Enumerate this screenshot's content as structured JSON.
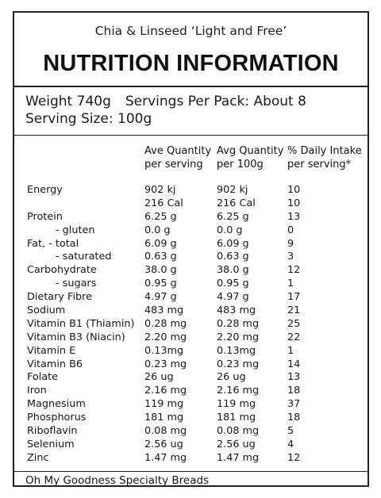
{
  "product_name": "Chia & Linseed ‘Light and Free’",
  "title": "NUTRITION INFORMATION",
  "weight": "Weight 740g",
  "servings_per_pack": "Servings Per Pack: About 8",
  "serving_size": "Serving Size: 100g",
  "columns": [
    {
      "line1": "Ave Quantity",
      "line2": "per serving"
    },
    {
      "line1": "Avg Quantity",
      "line2": "per 100g"
    },
    {
      "line1": "% Daily Intake",
      "line2": "per serving*"
    }
  ],
  "rows": [
    {
      "nutrient": "Energy",
      "per_serving": "902 kj",
      "per_100g": "902 kj",
      "daily": "10",
      "indent": false
    },
    {
      "nutrient": "",
      "per_serving": "216 Cal",
      "per_100g": "216 Cal",
      "daily": "10",
      "indent": false
    },
    {
      "nutrient": "Protein",
      "per_serving": "6.25 g",
      "per_100g": "6.25 g",
      "daily": "13",
      "indent": false
    },
    {
      "nutrient": "- gluten",
      "per_serving": "0.0 g",
      "per_100g": "0.0 g",
      "daily": "0",
      "indent": true
    },
    {
      "nutrient": "Fat,   - total",
      "per_serving": "6.09 g",
      "per_100g": "6.09 g",
      "daily": "9",
      "indent": false
    },
    {
      "nutrient": "- saturated",
      "per_serving": "0.63 g",
      "per_100g": "0.63 g",
      "daily": "3",
      "indent": true
    },
    {
      "nutrient": "Carbohydrate",
      "per_serving": "38.0 g",
      "per_100g": "38.0 g",
      "daily": "12",
      "indent": false
    },
    {
      "nutrient": "- sugars",
      "per_serving": "0.95 g",
      "per_100g": "0.95 g",
      "daily": "1",
      "indent": true
    },
    {
      "nutrient": "Dietary Fibre",
      "per_serving": "4.97 g",
      "per_100g": "4.97 g",
      "daily": "17",
      "indent": false
    },
    {
      "nutrient": "Sodium",
      "per_serving": "483 mg",
      "per_100g": "483 mg",
      "daily": "21",
      "indent": false
    },
    {
      "nutrient": "Vitamin B1 (Thiamin)",
      "per_serving": "0.28 mg",
      "per_100g": "0.28 mg",
      "daily": "25",
      "indent": false
    },
    {
      "nutrient": "Vitamin B3 (Niacin)",
      "per_serving": "2.20 mg",
      "per_100g": "2.20 mg",
      "daily": "22",
      "indent": false
    },
    {
      "nutrient": "Vitamin E",
      "per_serving": "0.13mg",
      "per_100g": "0.13mg",
      "daily": "1",
      "indent": false
    },
    {
      "nutrient": "Vitamin B6",
      "per_serving": "0.23 mg",
      "per_100g": "0.23 mg",
      "daily": "14",
      "indent": false
    },
    {
      "nutrient": "Folate",
      "per_serving": "26 ug",
      "per_100g": "26 ug",
      "daily": "13",
      "indent": false
    },
    {
      "nutrient": "Iron",
      "per_serving": "2.16 mg",
      "per_100g": "2.16 mg",
      "daily": "18",
      "indent": false
    },
    {
      "nutrient": "Magnesium",
      "per_serving": "119 mg",
      "per_100g": "119 mg",
      "daily": "37",
      "indent": false
    },
    {
      "nutrient": "Phosphorus",
      "per_serving": "181 mg",
      "per_100g": "181 mg",
      "daily": "18",
      "indent": false
    },
    {
      "nutrient": "Riboflavin",
      "per_serving": "0.08 mg",
      "per_100g": "0.08 mg",
      "daily": "5",
      "indent": false
    },
    {
      "nutrient": "Selenium",
      "per_serving": "2.56 ug",
      "per_100g": "2.56 ug",
      "daily": "4",
      "indent": false
    },
    {
      "nutrient": "Zinc",
      "per_serving": "1.47 mg",
      "per_100g": "1.47 mg",
      "daily": "12",
      "indent": false
    }
  ],
  "footer": "Oh My Goodness Specialty Breads"
}
